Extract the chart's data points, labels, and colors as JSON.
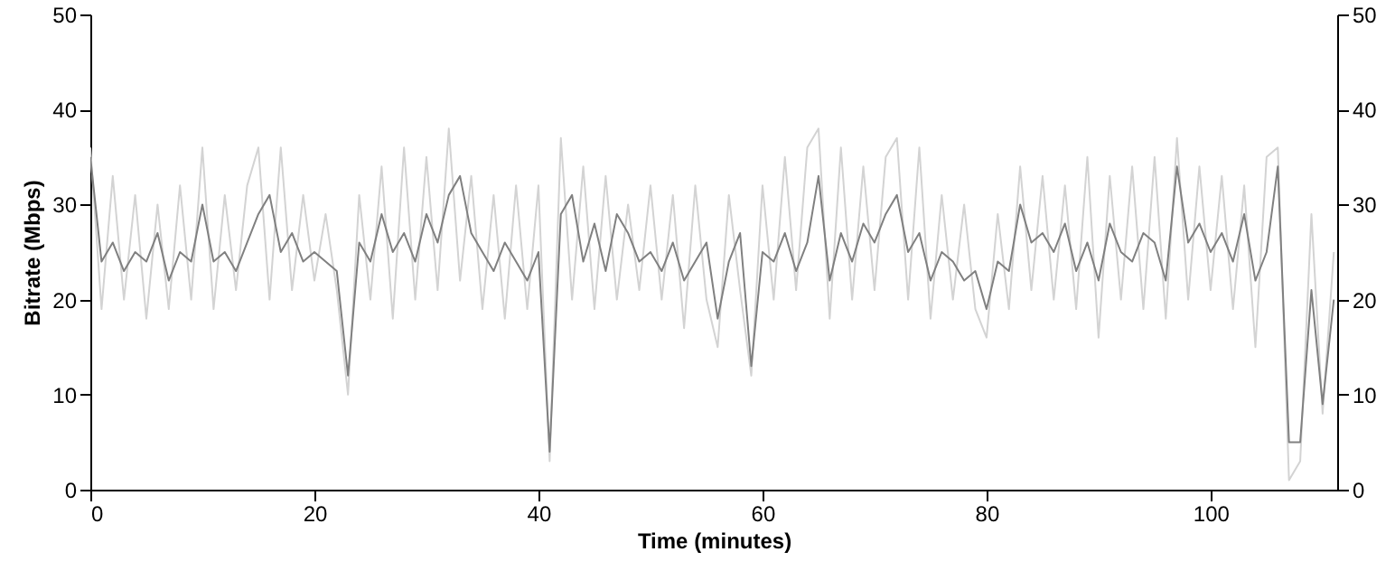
{
  "chart_data": {
    "type": "line",
    "xlabel": "Time (minutes)",
    "ylabel": "Bitrate (Mbps)",
    "x": [
      0,
      1,
      2,
      3,
      4,
      5,
      6,
      7,
      8,
      9,
      10,
      11,
      12,
      13,
      14,
      15,
      16,
      17,
      18,
      19,
      20,
      21,
      22,
      23,
      24,
      25,
      26,
      27,
      28,
      29,
      30,
      31,
      32,
      33,
      34,
      35,
      36,
      37,
      38,
      39,
      40,
      41,
      42,
      43,
      44,
      45,
      46,
      47,
      48,
      49,
      50,
      51,
      52,
      53,
      54,
      55,
      56,
      57,
      58,
      59,
      60,
      61,
      62,
      63,
      64,
      65,
      66,
      67,
      68,
      69,
      70,
      71,
      72,
      73,
      74,
      75,
      76,
      77,
      78,
      79,
      80,
      81,
      82,
      83,
      84,
      85,
      86,
      87,
      88,
      89,
      90,
      91,
      92,
      93,
      94,
      95,
      96,
      97,
      98,
      99,
      100,
      101,
      102,
      103,
      104,
      105,
      106,
      107,
      108,
      109,
      110,
      111
    ],
    "series": [
      {
        "color": "#d3d3d3",
        "values": [
          36,
          19,
          33,
          20,
          31,
          18,
          30,
          19,
          32,
          20,
          36,
          19,
          31,
          21,
          32,
          36,
          20,
          36,
          21,
          31,
          22,
          29,
          21,
          10,
          31,
          20,
          34,
          18,
          36,
          20,
          35,
          21,
          38,
          22,
          33,
          19,
          31,
          18,
          32,
          19,
          32,
          3,
          37,
          20,
          34,
          19,
          33,
          20,
          30,
          21,
          32,
          20,
          31,
          17,
          32,
          20,
          15,
          31,
          21,
          12,
          32,
          20,
          35,
          21,
          36,
          38,
          18,
          36,
          20,
          34,
          21,
          35,
          37,
          20,
          36,
          18,
          31,
          20,
          30,
          19,
          16,
          29,
          19,
          34,
          21,
          33,
          20,
          32,
          19,
          35,
          16,
          33,
          20,
          34,
          19,
          35,
          18,
          37,
          20,
          34,
          21,
          33,
          19,
          32,
          15,
          35,
          36,
          1,
          3,
          29,
          8,
          25
        ]
      },
      {
        "color": "#808080",
        "values": [
          35,
          24,
          26,
          23,
          25,
          24,
          27,
          22,
          25,
          24,
          30,
          24,
          25,
          23,
          26,
          29,
          31,
          25,
          27,
          24,
          25,
          24,
          23,
          12,
          26,
          24,
          29,
          25,
          27,
          24,
          29,
          26,
          31,
          33,
          27,
          25,
          23,
          26,
          24,
          22,
          25,
          4,
          29,
          31,
          24,
          28,
          23,
          29,
          27,
          24,
          25,
          23,
          26,
          22,
          24,
          26,
          18,
          24,
          27,
          13,
          25,
          24,
          27,
          23,
          26,
          33,
          22,
          27,
          24,
          28,
          26,
          29,
          31,
          25,
          27,
          22,
          25,
          24,
          22,
          23,
          19,
          24,
          23,
          30,
          26,
          27,
          25,
          28,
          23,
          26,
          22,
          28,
          25,
          24,
          27,
          26,
          22,
          34,
          26,
          28,
          25,
          27,
          24,
          29,
          22,
          25,
          34,
          5,
          5,
          21,
          9,
          20
        ]
      }
    ],
    "xlim": [
      0,
      111.3
    ],
    "xticks": [
      0,
      20,
      40,
      60,
      80,
      100
    ],
    "ylim": [
      0,
      50
    ],
    "yticks": [
      0,
      10,
      20,
      30,
      40,
      50
    ],
    "y2lim": [
      0,
      50
    ],
    "y2ticks": [
      0,
      10,
      20,
      30,
      40,
      50
    ],
    "grid": false
  }
}
